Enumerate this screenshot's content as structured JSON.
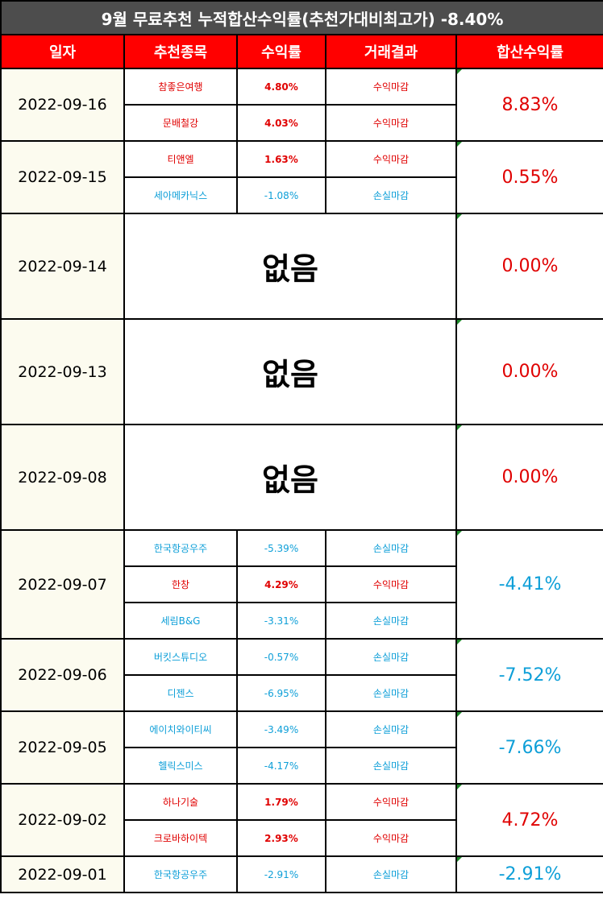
{
  "title": "9월 무료추천 누적합산수익률(추천가대비최고가) -8.40%",
  "headers": [
    "일자",
    "추천종목",
    "수익률",
    "거래결과",
    "합산수익률"
  ],
  "colors": {
    "profit": "#e00000",
    "loss": "#0e9fd8",
    "header": "#ff0000",
    "title_bg": "#4d4d4d"
  },
  "none_label": "없음",
  "groups": [
    {
      "date": "2022-09-16",
      "sum": "8.83%",
      "sum_type": "profit",
      "items": [
        {
          "name": "참좋은여행",
          "rate": "4.80%",
          "result": "수익마감",
          "type": "profit"
        },
        {
          "name": "문배철강",
          "rate": "4.03%",
          "result": "수익마감",
          "type": "profit"
        }
      ]
    },
    {
      "date": "2022-09-15",
      "sum": "0.55%",
      "sum_type": "profit",
      "items": [
        {
          "name": "티앤엘",
          "rate": "1.63%",
          "result": "수익마감",
          "type": "profit"
        },
        {
          "name": "세아메카닉스",
          "rate": "-1.08%",
          "result": "손실마감",
          "type": "loss"
        }
      ]
    },
    {
      "date": "2022-09-14",
      "sum": "0.00%",
      "sum_type": "profit",
      "items": []
    },
    {
      "date": "2022-09-13",
      "sum": "0.00%",
      "sum_type": "profit",
      "items": []
    },
    {
      "date": "2022-09-08",
      "sum": "0.00%",
      "sum_type": "profit",
      "items": []
    },
    {
      "date": "2022-09-07",
      "sum": "-4.41%",
      "sum_type": "loss",
      "items": [
        {
          "name": "한국항공우주",
          "rate": "-5.39%",
          "result": "손실마감",
          "type": "loss"
        },
        {
          "name": "한창",
          "rate": "4.29%",
          "result": "수익마감",
          "type": "profit"
        },
        {
          "name": "세림B&G",
          "rate": "-3.31%",
          "result": "손실마감",
          "type": "loss"
        }
      ]
    },
    {
      "date": "2022-09-06",
      "sum": "-7.52%",
      "sum_type": "loss",
      "items": [
        {
          "name": "버킷스튜디오",
          "rate": "-0.57%",
          "result": "손실마감",
          "type": "loss"
        },
        {
          "name": "디젠스",
          "rate": "-6.95%",
          "result": "손실마감",
          "type": "loss"
        }
      ]
    },
    {
      "date": "2022-09-05",
      "sum": "-7.66%",
      "sum_type": "loss",
      "items": [
        {
          "name": "에이치와이티씨",
          "rate": "-3.49%",
          "result": "손실마감",
          "type": "loss"
        },
        {
          "name": "헬릭스미스",
          "rate": "-4.17%",
          "result": "손실마감",
          "type": "loss"
        }
      ]
    },
    {
      "date": "2022-09-02",
      "sum": "4.72%",
      "sum_type": "profit",
      "items": [
        {
          "name": "하나기술",
          "rate": "1.79%",
          "result": "수익마감",
          "type": "profit"
        },
        {
          "name": "크로바하이텍",
          "rate": "2.93%",
          "result": "수익마감",
          "type": "profit"
        }
      ]
    },
    {
      "date": "2022-09-01",
      "sum": "-2.91%",
      "sum_type": "loss",
      "items": [
        {
          "name": "한국항공우주",
          "rate": "-2.91%",
          "result": "손실마감",
          "type": "loss"
        }
      ]
    }
  ]
}
